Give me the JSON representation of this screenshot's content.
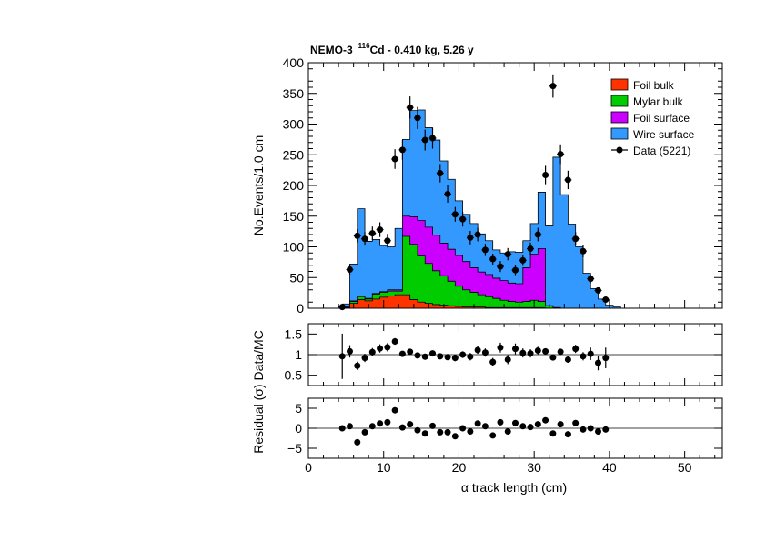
{
  "chart_data": {
    "type": "bar",
    "title_prefix": "NEMO-3",
    "title_iso_mass": "116",
    "title_iso_symbol": "Cd",
    "title_suffix": " - 0.410 kg, 5.26 y",
    "xlabel": "α track length (cm)",
    "xlim": [
      0,
      55
    ],
    "xticks": [
      0,
      10,
      20,
      30,
      40,
      50
    ],
    "bin_edges": [
      0.5,
      1.5,
      2.5,
      3.5,
      4.5,
      5.5,
      6.5,
      7.5,
      8.5,
      9.5,
      10.5,
      11.5,
      12.5,
      13.5,
      14.5,
      15.5,
      16.5,
      17.5,
      18.5,
      19.5,
      20.5,
      21.5,
      22.5,
      23.5,
      24.5,
      25.5,
      26.5,
      27.5,
      28.5,
      29.5,
      30.5,
      31.5,
      32.5,
      33.5,
      34.5,
      35.5,
      36.5,
      37.5,
      38.5,
      39.5,
      40.5,
      41.5,
      42.5,
      43.5,
      44.5,
      45.5,
      46.5,
      47.5,
      48.5,
      49.5,
      50.5,
      51.5,
      52.5,
      53.5,
      54.5
    ],
    "main_panel": {
      "ylabel": "No.Events/1.0 cm",
      "ylim": [
        0,
        400
      ],
      "yticks": [
        0,
        50,
        100,
        150,
        200,
        250,
        300,
        350,
        400
      ],
      "legend_position": "top-right",
      "series": [
        {
          "name": "Foil bulk",
          "color": "#ff3300",
          "values": [
            0,
            0,
            0,
            0,
            1,
            8,
            14,
            12,
            15,
            18,
            20,
            22,
            22,
            14,
            10,
            8,
            6,
            5,
            4,
            3,
            2,
            2,
            2,
            1,
            1,
            1,
            1,
            1,
            1,
            1,
            1,
            0,
            0,
            0,
            0,
            0,
            0,
            0,
            0,
            0,
            0,
            0,
            0,
            0,
            0,
            0,
            0,
            0,
            0,
            0,
            0,
            0,
            0,
            0
          ]
        },
        {
          "name": "Mylar bulk",
          "color": "#00cc00",
          "values": [
            0,
            0,
            0,
            0,
            1,
            3,
            5,
            3,
            8,
            8,
            8,
            6,
            95,
            90,
            75,
            65,
            55,
            48,
            40,
            33,
            28,
            24,
            20,
            18,
            15,
            12,
            10,
            9,
            10,
            12,
            10,
            4,
            1,
            0,
            0,
            0,
            0,
            0,
            0,
            0,
            0,
            0,
            0,
            0,
            0,
            0,
            0,
            0,
            0,
            0,
            0,
            0,
            0,
            0
          ]
        },
        {
          "name": "Foil surface",
          "color": "#cc00ff",
          "values": [
            0,
            0,
            0,
            0,
            0,
            1,
            1,
            1,
            1,
            1,
            2,
            2,
            33,
            45,
            58,
            59,
            58,
            53,
            52,
            50,
            46,
            40,
            37,
            36,
            33,
            32,
            30,
            30,
            55,
            75,
            86,
            0,
            0,
            0,
            0,
            0,
            0,
            0,
            0,
            0,
            0,
            0,
            0,
            0,
            0,
            0,
            0,
            0,
            0,
            0,
            0,
            0,
            0,
            0
          ]
        },
        {
          "name": "Wire surface",
          "color": "#3399ff",
          "values": [
            0,
            0,
            0,
            0,
            5,
            60,
            142,
            93,
            88,
            75,
            70,
            100,
            125,
            173,
            180,
            162,
            155,
            134,
            114,
            89,
            77,
            72,
            62,
            55,
            46,
            45,
            51,
            51,
            44,
            50,
            92,
            130,
            245,
            185,
            137,
            100,
            57,
            32,
            15,
            5,
            2,
            0,
            0,
            0,
            0,
            0,
            0,
            0,
            0,
            0,
            0,
            0,
            0,
            0
          ]
        }
      ],
      "data": {
        "name": "Data (5221)",
        "x": [
          4.5,
          5.5,
          6.5,
          7.5,
          8.5,
          9.5,
          10.5,
          11.5,
          12.5,
          13.5,
          14.5,
          15.5,
          16.5,
          17.5,
          18.5,
          19.5,
          20.5,
          21.5,
          22.5,
          23.5,
          24.5,
          25.5,
          26.5,
          27.5,
          28.5,
          29.5,
          30.5,
          31.5,
          32.5,
          33.5,
          34.5,
          35.5,
          36.5,
          37.5,
          38.5,
          39.5
        ],
        "y": [
          2,
          63,
          118,
          113,
          122,
          128,
          110,
          243,
          258,
          327,
          310,
          274,
          277,
          220,
          186,
          153,
          145,
          115,
          120,
          95,
          80,
          68,
          88,
          62,
          78,
          97,
          120,
          217,
          362,
          251,
          209,
          113,
          93,
          48,
          29,
          14
        ],
        "yerr": [
          2,
          8,
          11,
          11,
          11,
          12,
          11,
          16,
          16,
          18,
          18,
          17,
          17,
          15,
          14,
          12,
          12,
          11,
          11,
          10,
          9,
          9,
          10,
          8,
          9,
          10,
          11,
          15,
          19,
          16,
          15,
          11,
          10,
          7,
          5,
          4
        ]
      }
    },
    "ratio_panel": {
      "ylabel": "Data/MC",
      "ylim": [
        0.25,
        1.75
      ],
      "yticks": [
        0.5,
        1,
        1.5
      ],
      "ytick_labels": [
        "0.5",
        "1",
        "1.5"
      ],
      "reference_line": 1,
      "x": [
        4.5,
        5.5,
        6.5,
        7.5,
        8.5,
        9.5,
        10.5,
        11.5,
        12.5,
        13.5,
        14.5,
        15.5,
        16.5,
        17.5,
        18.5,
        19.5,
        20.5,
        21.5,
        22.5,
        23.5,
        24.5,
        25.5,
        26.5,
        27.5,
        28.5,
        29.5,
        30.5,
        31.5,
        32.5,
        33.5,
        34.5,
        35.5,
        36.5,
        37.5,
        38.5,
        39.5
      ],
      "y": [
        0.96,
        1.08,
        0.73,
        0.92,
        1.06,
        1.15,
        1.18,
        1.32,
        1.02,
        1.07,
        0.98,
        0.95,
        1.03,
        0.96,
        0.94,
        0.92,
        1.0,
        0.95,
        1.11,
        1.05,
        0.82,
        1.17,
        0.88,
        1.14,
        1.04,
        1.03,
        1.1,
        1.08,
        0.93,
        1.07,
        0.88,
        1.14,
        0.96,
        1.02,
        0.8,
        0.92
      ],
      "yerr": [
        0.55,
        0.15,
        0.1,
        0.1,
        0.1,
        0.1,
        0.1,
        0.08,
        0.07,
        0.06,
        0.06,
        0.06,
        0.06,
        0.07,
        0.07,
        0.08,
        0.08,
        0.09,
        0.09,
        0.1,
        0.1,
        0.12,
        0.11,
        0.13,
        0.11,
        0.1,
        0.09,
        0.07,
        0.05,
        0.06,
        0.07,
        0.1,
        0.1,
        0.15,
        0.18,
        0.25
      ]
    },
    "residual_panel": {
      "ylabel": "Residual (σ)",
      "ylim": [
        -7.5,
        7.5
      ],
      "yticks": [
        -5,
        0,
        5
      ],
      "ytick_labels": [
        "−5",
        "0",
        "5"
      ],
      "reference_line": 0,
      "x": [
        4.5,
        5.5,
        6.5,
        7.5,
        8.5,
        9.5,
        10.5,
        11.5,
        12.5,
        13.5,
        14.5,
        15.5,
        16.5,
        17.5,
        18.5,
        19.5,
        20.5,
        21.5,
        22.5,
        23.5,
        24.5,
        25.5,
        26.5,
        27.5,
        28.5,
        29.5,
        30.5,
        31.5,
        32.5,
        33.5,
        34.5,
        35.5,
        36.5,
        37.5,
        38.5,
        39.5
      ],
      "y": [
        0,
        0.5,
        -3.5,
        -1,
        0.5,
        1.2,
        1.5,
        4.5,
        0.2,
        1,
        -0.5,
        -1.3,
        0.6,
        -1,
        -1,
        -2,
        0,
        -0.8,
        1.2,
        0.5,
        -1.8,
        1.5,
        -0.8,
        1.3,
        0.5,
        0.3,
        1,
        2,
        -1.3,
        1,
        -1.5,
        1.3,
        -0.3,
        0,
        -0.8,
        -0.3
      ]
    }
  }
}
